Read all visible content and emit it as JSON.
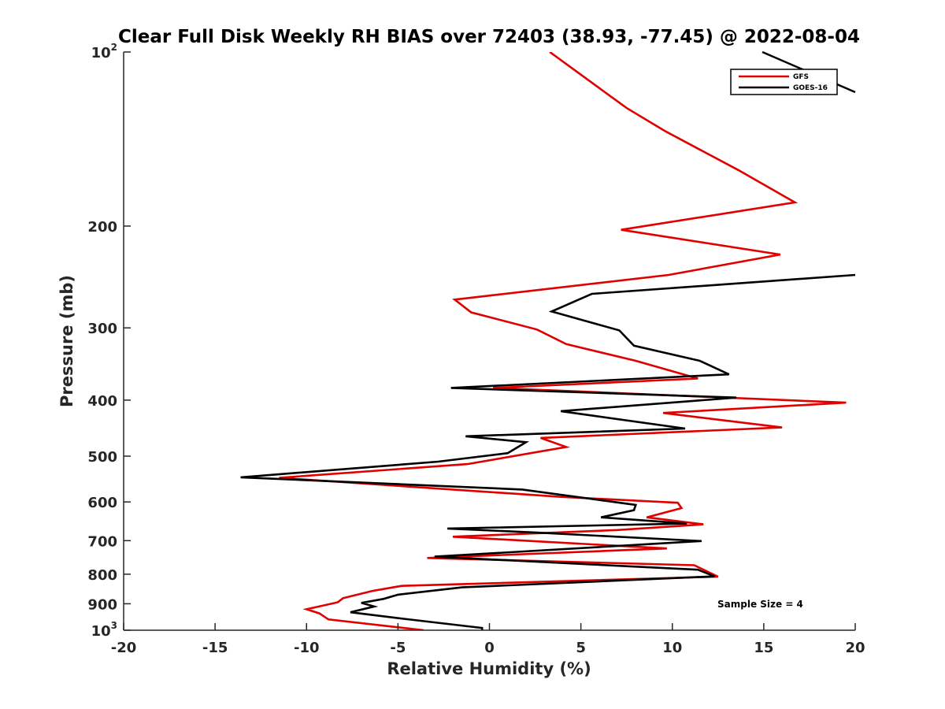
{
  "chart_data": {
    "type": "line",
    "title": "Clear Full Disk Weekly RH BIAS over 72403 (38.93, -77.45) @ 2022-08-04",
    "xlabel": "Relative Humidity (%)",
    "ylabel": "Pressure (mb)",
    "xlim": [
      -20,
      20
    ],
    "ylim": [
      100,
      1000
    ],
    "yscale": "log",
    "y_reversed": true,
    "grid": false,
    "legend_position": "top-right",
    "x_ticks": [
      "-20",
      "-15",
      "-10",
      "-5",
      "0",
      "5",
      "10",
      "15",
      "20"
    ],
    "y_ticks": [
      {
        "value": 100,
        "label": "10",
        "sup": "2"
      },
      {
        "value": 200,
        "label": "200",
        "sup": ""
      },
      {
        "value": 300,
        "label": "300",
        "sup": ""
      },
      {
        "value": 400,
        "label": "400",
        "sup": ""
      },
      {
        "value": 500,
        "label": "500",
        "sup": ""
      },
      {
        "value": 600,
        "label": "600",
        "sup": ""
      },
      {
        "value": 700,
        "label": "700",
        "sup": ""
      },
      {
        "value": 800,
        "label": "800",
        "sup": ""
      },
      {
        "value": 900,
        "label": "900",
        "sup": ""
      },
      {
        "value": 1000,
        "label": "10",
        "sup": "3"
      }
    ],
    "annotation": "Sample Size = 4",
    "series": [
      {
        "name": "GFS",
        "color": "#e00000",
        "points": [
          [
            -3.6,
            1000
          ],
          [
            -8.8,
            958
          ],
          [
            -9.3,
            935
          ],
          [
            -10.0,
            920
          ],
          [
            -8.3,
            895
          ],
          [
            -8.0,
            880
          ],
          [
            -6.4,
            855
          ],
          [
            -4.8,
            838
          ],
          [
            12.5,
            808
          ],
          [
            11.2,
            772
          ],
          [
            -3.4,
            750
          ],
          [
            9.7,
            722
          ],
          [
            3.0,
            703
          ],
          [
            -2.0,
            689
          ],
          [
            7.0,
            671
          ],
          [
            11.7,
            656
          ],
          [
            8.6,
            638
          ],
          [
            10.5,
            615
          ],
          [
            10.3,
            602
          ],
          [
            3.9,
            588
          ],
          [
            -11.5,
            545
          ],
          [
            -1.2,
            516
          ],
          [
            4.2,
            482
          ],
          [
            2.8,
            465
          ],
          [
            16.0,
            446
          ],
          [
            9.5,
            421
          ],
          [
            19.5,
            404
          ],
          [
            0.2,
            381
          ],
          [
            11.4,
            367
          ],
          [
            8.0,
            342
          ],
          [
            4.2,
            320
          ],
          [
            2.6,
            302
          ],
          [
            -1.0,
            282
          ],
          [
            -1.9,
            268
          ],
          [
            9.8,
            243
          ],
          [
            15.9,
            224
          ],
          [
            7.2,
            203
          ],
          [
            16.7,
            182
          ],
          [
            13.6,
            160
          ],
          [
            9.6,
            137
          ],
          [
            7.5,
            125
          ],
          [
            3.3,
            100
          ]
        ]
      },
      {
        "name": "GOES-16",
        "color": "#000000",
        "points": [
          [
            -0.4,
            1000
          ],
          [
            -0.4,
            991
          ],
          [
            -4.5,
            957
          ],
          [
            -7.6,
            931
          ],
          [
            -6.3,
            910
          ],
          [
            -7.0,
            897
          ],
          [
            -5.8,
            883
          ],
          [
            -5.0,
            868
          ],
          [
            -1.5,
            843
          ],
          [
            12.3,
            807
          ],
          [
            11.4,
            786
          ],
          [
            -3.0,
            746
          ],
          [
            11.6,
            701
          ],
          [
            2.6,
            678
          ],
          [
            -2.3,
            667
          ],
          [
            10.8,
            654
          ],
          [
            6.1,
            638
          ],
          [
            7.9,
            620
          ],
          [
            8.0,
            607
          ],
          [
            1.8,
            571
          ],
          [
            -13.6,
            544
          ],
          [
            -2.8,
            511
          ],
          [
            1.0,
            494
          ],
          [
            2.0,
            473
          ],
          [
            -1.3,
            462
          ],
          [
            10.7,
            448
          ],
          [
            3.9,
            418
          ],
          [
            13.5,
            396
          ],
          [
            -2.1,
            381
          ],
          [
            13.1,
            361
          ],
          [
            11.5,
            342
          ],
          [
            7.9,
            322
          ],
          [
            7.1,
            303
          ],
          [
            3.4,
            281
          ],
          [
            5.6,
            262
          ],
          [
            20.0,
            243
          ],
          [
            20.3,
            243
          ]
        ]
      }
    ],
    "offplot_segment_color": "#000000"
  }
}
